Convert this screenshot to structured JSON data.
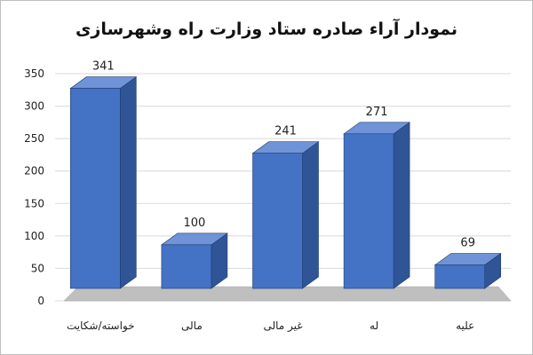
{
  "chart_data": {
    "type": "bar",
    "title": "نمودار آراء صادره ستاد وزارت راه وشهرسازی",
    "categories": [
      "خواسته/شکایت",
      "مالی",
      "غیر مالی",
      "له",
      "علیه"
    ],
    "values": [
      341,
      100,
      241,
      271,
      69
    ],
    "ylim": [
      0,
      350
    ],
    "yticks": [
      0,
      50,
      100,
      150,
      200,
      250,
      300,
      350
    ],
    "grid": true,
    "legend": "none",
    "three_d": true
  },
  "colors": {
    "bar_front": "#4472c4",
    "bar_side": "#2f5597",
    "bar_top": "#6f93d6",
    "floor": "#bfbfbf",
    "grid": "#d9d9d9",
    "text": "#222222"
  }
}
